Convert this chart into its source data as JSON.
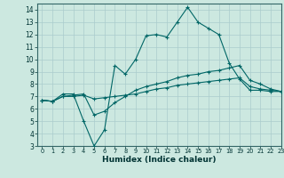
{
  "title": "",
  "xlabel": "Humidex (Indice chaleur)",
  "ylabel": "",
  "bg_color": "#cce8e0",
  "grid_color": "#aacccc",
  "line_color": "#006666",
  "xlim": [
    -0.5,
    23
  ],
  "ylim": [
    3,
    14.5
  ],
  "xticks": [
    0,
    1,
    2,
    3,
    4,
    5,
    6,
    7,
    8,
    9,
    10,
    11,
    12,
    13,
    14,
    15,
    16,
    17,
    18,
    19,
    20,
    21,
    22,
    23
  ],
  "yticks": [
    3,
    4,
    5,
    6,
    7,
    8,
    9,
    10,
    11,
    12,
    13,
    14
  ],
  "line1_x": [
    0,
    1,
    2,
    3,
    4,
    5,
    6,
    7,
    8,
    9,
    10,
    11,
    12,
    13,
    14,
    15,
    16,
    17,
    18,
    19,
    20,
    21,
    22,
    23
  ],
  "line1_y": [
    6.7,
    6.6,
    7.2,
    7.2,
    5.0,
    3.0,
    4.3,
    9.5,
    8.8,
    10.0,
    11.9,
    12.0,
    11.8,
    13.0,
    14.2,
    13.0,
    12.5,
    12.0,
    9.7,
    8.4,
    7.5,
    7.5,
    7.4,
    7.4
  ],
  "line2_x": [
    0,
    1,
    2,
    3,
    4,
    5,
    6,
    7,
    8,
    9,
    10,
    11,
    12,
    13,
    14,
    15,
    16,
    17,
    18,
    19,
    20,
    21,
    22,
    23
  ],
  "line2_y": [
    6.7,
    6.6,
    7.0,
    7.1,
    7.2,
    5.5,
    5.8,
    6.5,
    7.0,
    7.5,
    7.8,
    8.0,
    8.2,
    8.5,
    8.7,
    8.8,
    9.0,
    9.1,
    9.3,
    9.5,
    8.3,
    8.0,
    7.6,
    7.4
  ],
  "line3_x": [
    0,
    1,
    2,
    3,
    4,
    5,
    6,
    7,
    8,
    9,
    10,
    11,
    12,
    13,
    14,
    15,
    16,
    17,
    18,
    19,
    20,
    21,
    22,
    23
  ],
  "line3_y": [
    6.7,
    6.6,
    7.0,
    7.0,
    7.1,
    6.8,
    6.9,
    7.0,
    7.1,
    7.2,
    7.4,
    7.6,
    7.7,
    7.9,
    8.0,
    8.1,
    8.2,
    8.3,
    8.4,
    8.5,
    7.8,
    7.6,
    7.5,
    7.4
  ]
}
